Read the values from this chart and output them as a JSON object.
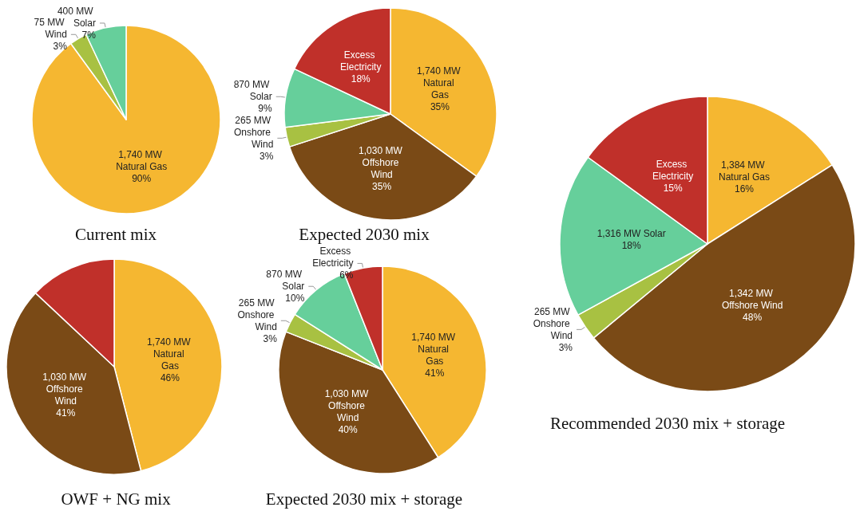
{
  "chart_data": [
    {
      "type": "pie",
      "title": "Current mix",
      "categories": [
        "1,740 MW Natural Gas",
        "75 MW Wind",
        "400 MW Solar"
      ],
      "values": [
        90,
        3,
        7
      ],
      "colors": [
        "#f5b731",
        "#a8c142",
        "#66cf9b"
      ],
      "value_labels": [
        "90%",
        "3%",
        "7%"
      ]
    },
    {
      "type": "pie",
      "title": "Expected 2030 mix",
      "categories": [
        "1,740 MW Natural Gas",
        "1,030 MW Offshore Wind",
        "265 MW Onshore Wind",
        "870 MW Solar",
        "Excess Electricity"
      ],
      "values": [
        35,
        35,
        3,
        9,
        18
      ],
      "colors": [
        "#f5b731",
        "#7a4a16",
        "#a8c142",
        "#66cf9b",
        "#c0302a"
      ],
      "value_labels": [
        "35%",
        "35%",
        "3%",
        "9%",
        "18%"
      ]
    },
    {
      "type": "pie",
      "title": "OWF + NG mix",
      "categories": [
        "1,740 MW Natural Gas",
        "1,030 MW Offshore Wind",
        null
      ],
      "values": [
        46,
        41,
        13
      ],
      "colors": [
        "#f5b731",
        "#7a4a16",
        "#c0302a"
      ],
      "value_labels": [
        "46%",
        "41%",
        null
      ]
    },
    {
      "type": "pie",
      "title": "Expected 2030 mix + storage",
      "categories": [
        "1,740 MW Natural Gas",
        "1,030 MW Offshore Wind",
        "265 MW Onshore Wind",
        "870 MW Solar",
        "Excess Electricity"
      ],
      "values": [
        41,
        40,
        3,
        10,
        6
      ],
      "colors": [
        "#f5b731",
        "#7a4a16",
        "#a8c142",
        "#66cf9b",
        "#c0302a"
      ],
      "value_labels": [
        "41%",
        "40%",
        "3%",
        "10%",
        "6%"
      ]
    },
    {
      "type": "pie",
      "title": "Recommended 2030 mix + storage",
      "categories": [
        "1,384 MW Natural Gas",
        "1,342 MW Offshore Wind",
        "265 MW Onshore Wind",
        "1,316 MW Solar",
        "Excess Electricity"
      ],
      "values": [
        16,
        48,
        3,
        18,
        15
      ],
      "colors": [
        "#f5b731",
        "#7a4a16",
        "#a8c142",
        "#66cf9b",
        "#c0302a"
      ],
      "value_labels": [
        "16%",
        "48%",
        "3%",
        "18%",
        "15%"
      ]
    }
  ]
}
